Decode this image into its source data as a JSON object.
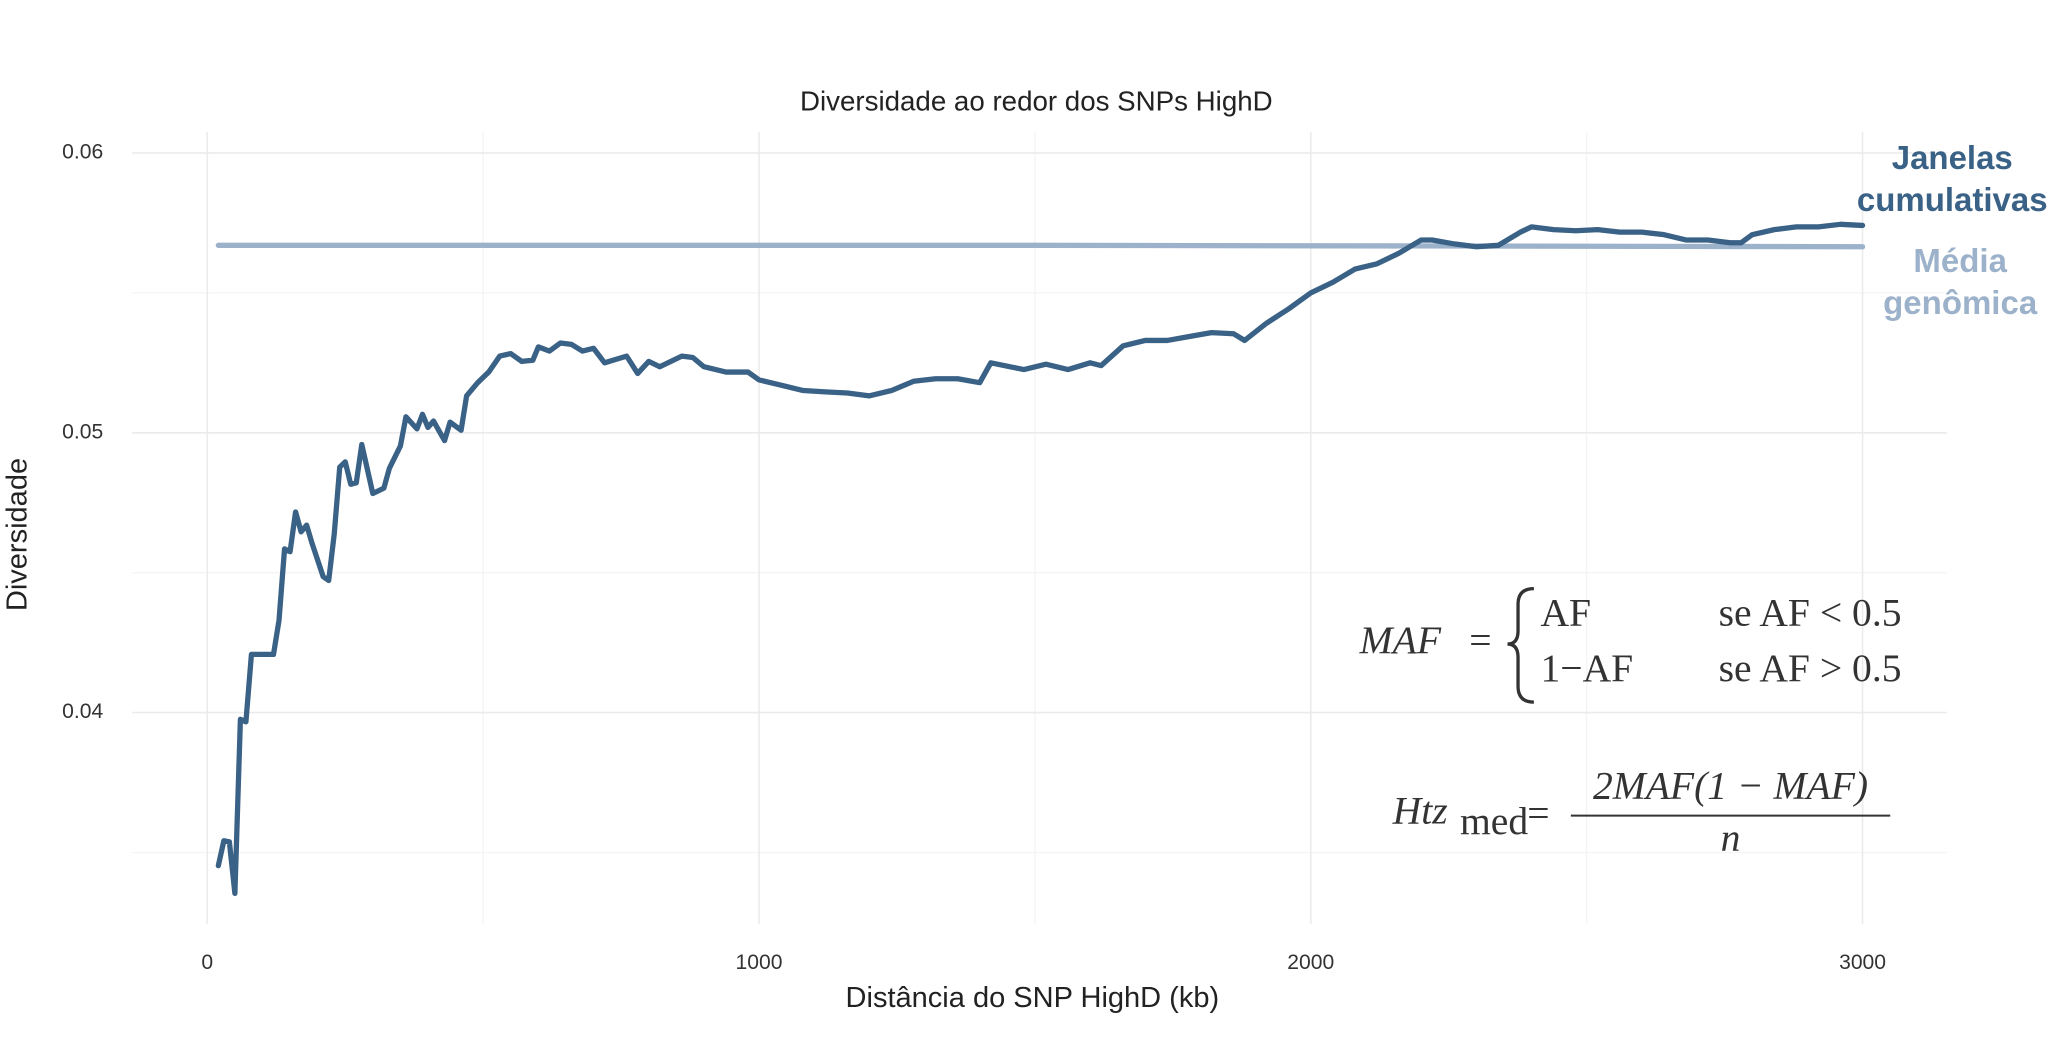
{
  "chart_data": {
    "type": "line",
    "title": "Diversidade ao redor dos SNPs HighD",
    "x_label": "Distância do SNP HighD (kb)",
    "y_label": "Diversidade",
    "xlim": [
      -136,
      3153
    ],
    "ylim": [
      0.03245,
      0.06075
    ],
    "xticks": [
      0,
      1000,
      2000,
      3000
    ],
    "yticks": [
      0.04,
      0.05,
      0.06
    ],
    "minor_xticks": [
      500,
      1500,
      2500
    ],
    "minor_yticks": [
      0.035,
      0.045,
      0.055
    ],
    "grid": true,
    "legend_position": "right",
    "series": [
      {
        "name": "Janelas cumulativas",
        "color": "#3a6186",
        "x": [
          20,
          30,
          40,
          50,
          60,
          70,
          80,
          100,
          120,
          130,
          140,
          150,
          160,
          170,
          180,
          190,
          210,
          220,
          230,
          240,
          250,
          260,
          270,
          280,
          300,
          320,
          330,
          350,
          360,
          380,
          390,
          400,
          410,
          430,
          440,
          460,
          470,
          490,
          510,
          530,
          550,
          570,
          590,
          600,
          620,
          640,
          660,
          680,
          700,
          720,
          760,
          780,
          800,
          820,
          860,
          880,
          900,
          940,
          980,
          1000,
          1040,
          1080,
          1120,
          1160,
          1200,
          1240,
          1280,
          1320,
          1360,
          1400,
          1420,
          1480,
          1520,
          1560,
          1600,
          1620,
          1660,
          1700,
          1740,
          1780,
          1820,
          1860,
          1880,
          1920,
          1960,
          2000,
          2040,
          2080,
          2120,
          2160,
          2200,
          2220,
          2260,
          2300,
          2340,
          2380,
          2400,
          2440,
          2480,
          2520,
          2560,
          2600,
          2640,
          2680,
          2720,
          2760,
          2780,
          2800,
          2840,
          2880,
          2920,
          2960,
          3000
        ],
        "values": [
          0.03453,
          0.03542,
          0.03538,
          0.03354,
          0.03976,
          0.03967,
          0.04208,
          0.04208,
          0.04208,
          0.0433,
          0.04585,
          0.04575,
          0.04717,
          0.04646,
          0.0467,
          0.04604,
          0.04486,
          0.04472,
          0.04637,
          0.04877,
          0.04896,
          0.04816,
          0.04821,
          0.04958,
          0.04783,
          0.04802,
          0.04873,
          0.04953,
          0.05057,
          0.05014,
          0.05066,
          0.05019,
          0.05042,
          0.04972,
          0.05038,
          0.05009,
          0.05132,
          0.05179,
          0.05217,
          0.05274,
          0.05283,
          0.05255,
          0.05259,
          0.05307,
          0.05292,
          0.05321,
          0.05316,
          0.05292,
          0.05302,
          0.0525,
          0.05274,
          0.05212,
          0.05255,
          0.05236,
          0.05274,
          0.05269,
          0.05236,
          0.05217,
          0.05217,
          0.05189,
          0.0517,
          0.05151,
          0.05146,
          0.05142,
          0.05132,
          0.05151,
          0.05184,
          0.05193,
          0.05193,
          0.05179,
          0.0525,
          0.05226,
          0.05245,
          0.05226,
          0.0525,
          0.0524,
          0.05311,
          0.0533,
          0.0533,
          0.05344,
          0.05358,
          0.05354,
          0.0533,
          0.05392,
          0.05443,
          0.055,
          0.05538,
          0.05585,
          0.05604,
          0.05642,
          0.05689,
          0.05689,
          0.05675,
          0.05665,
          0.0567,
          0.05717,
          0.05736,
          0.05726,
          0.05722,
          0.05726,
          0.05717,
          0.05717,
          0.05708,
          0.05689,
          0.05689,
          0.05679,
          0.05679,
          0.05708,
          0.05726,
          0.05736,
          0.05736,
          0.05745,
          0.05741
        ]
      },
      {
        "name": "Média genômica",
        "color": "#9cb1ca",
        "x": [
          20,
          1500,
          3000
        ],
        "values": [
          0.0567,
          0.0567,
          0.05665
        ]
      }
    ],
    "formulas": [
      {
        "lhs": "MAF",
        "relation": "=",
        "cases": [
          {
            "expr": "AF",
            "cond": "se AF < 0.5"
          },
          {
            "expr": "1−AF",
            "cond": "se AF > 0.5"
          }
        ]
      },
      {
        "lhs": "Htz",
        "subscript": "med",
        "relation": "=",
        "numerator": "2MAF(1 − MAF)",
        "denominator": "n"
      }
    ]
  }
}
